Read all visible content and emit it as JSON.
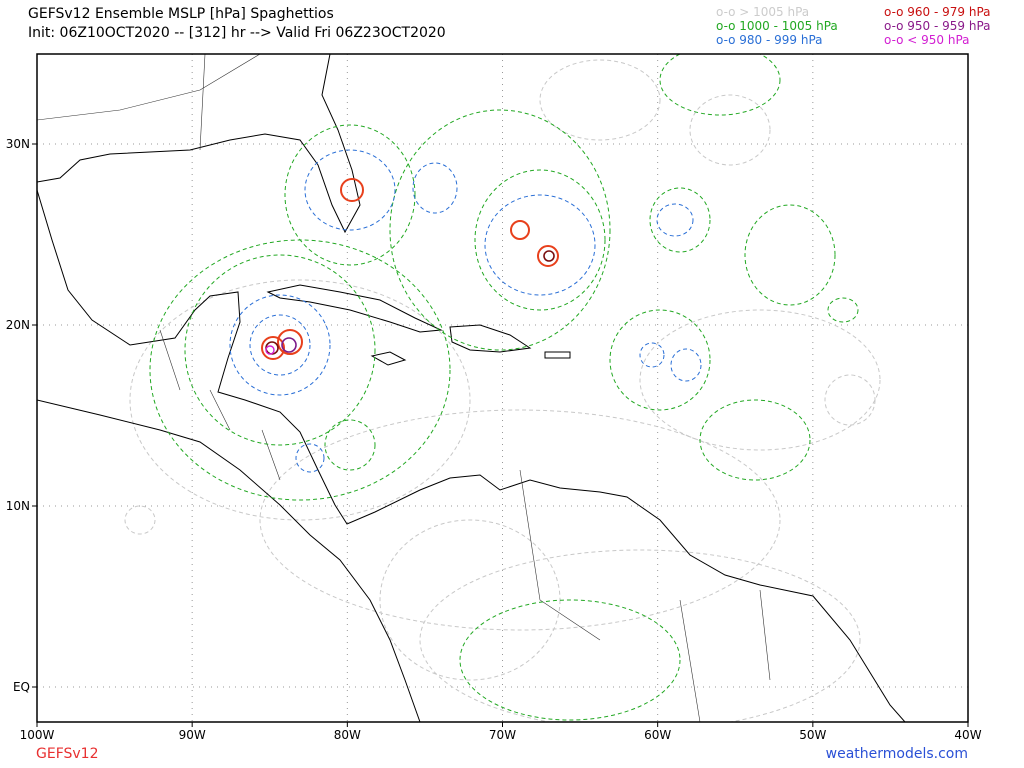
{
  "header": {
    "title": "GEFSv12 Ensemble MSLP [hPa] Spaghettios",
    "subtitle": "Init: 06Z10OCT2020 -- [312] hr --> Valid Fri 06Z23OCT2020"
  },
  "legend": [
    {
      "label": "o-o > 1005 hPa",
      "color": "#cccccc"
    },
    {
      "label": "o-o 1000 - 1005 hPa",
      "color": "#22a822"
    },
    {
      "label": "o-o 980 - 999 hPa",
      "color": "#2a6fd6"
    },
    {
      "label": "o-o 960 - 979 hPa",
      "color": "#c81010"
    },
    {
      "label": "o-o 950 - 959 hPa",
      "color": "#8a1a8a"
    },
    {
      "label": "o-o < 950 hPa",
      "color": "#d21ed2"
    }
  ],
  "axes": {
    "x_labels": [
      "100W",
      "90W",
      "80W",
      "70W",
      "60W",
      "50W",
      "40W"
    ],
    "y_labels": [
      "30N",
      "20N",
      "10N",
      "EQ"
    ]
  },
  "footer": {
    "left": "GEFSv12",
    "right": "weathermodels.com"
  }
}
